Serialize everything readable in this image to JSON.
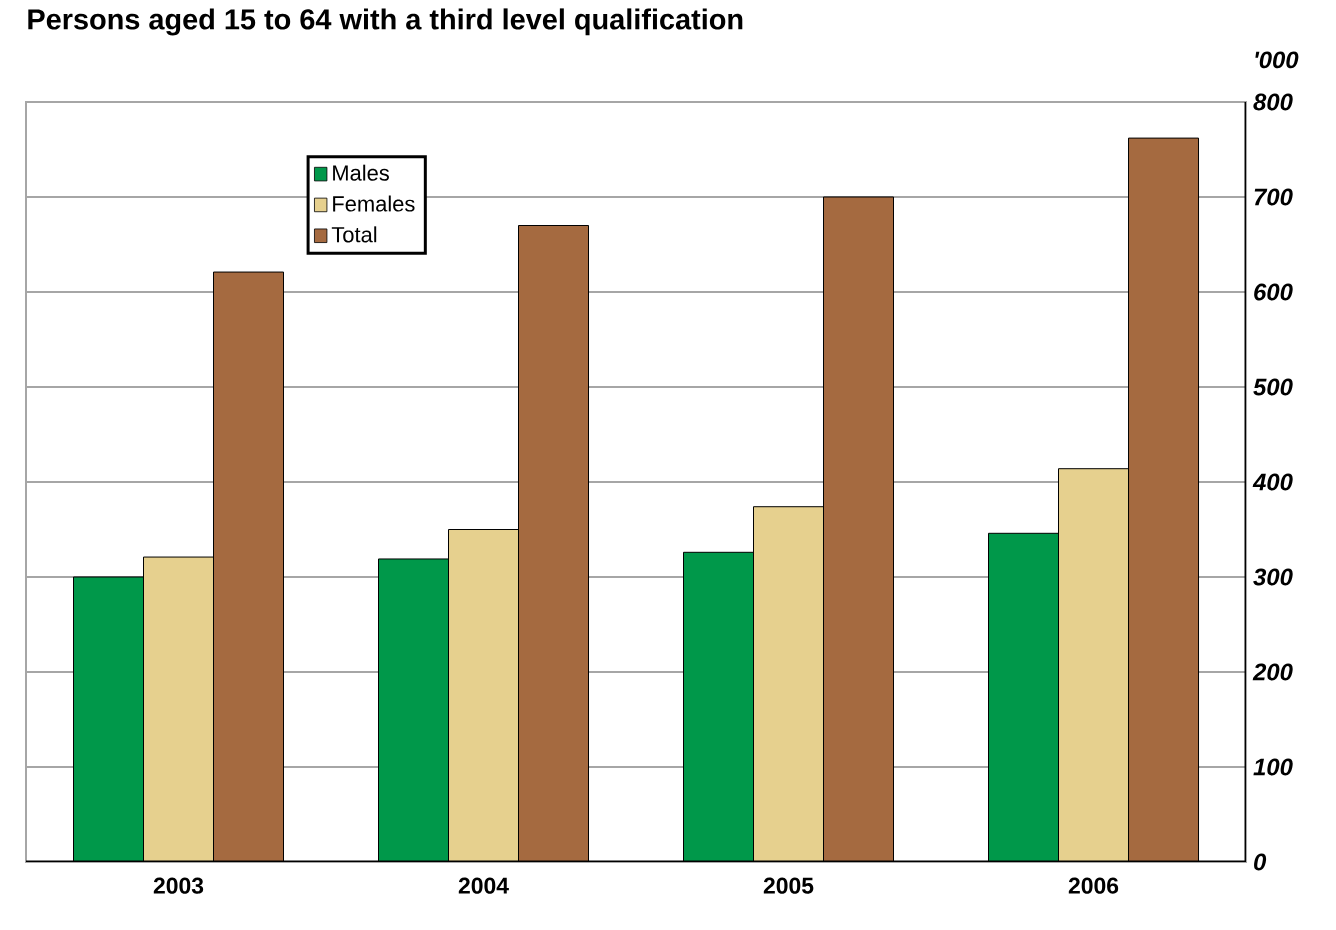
{
  "chart_data": {
    "type": "bar",
    "title": "Persons aged 15 to 64 with a third level qualification",
    "ylabel": "'000",
    "categories": [
      "2003",
      "2004",
      "2005",
      "2006"
    ],
    "series": [
      {
        "name": "Males",
        "color": "#00984a",
        "values": [
          300,
          319,
          326,
          346
        ]
      },
      {
        "name": "Females",
        "color": "#e6d08e",
        "values": [
          321,
          350,
          374,
          414
        ]
      },
      {
        "name": "Total",
        "color": "#a56a40",
        "values": [
          621,
          670,
          700,
          762
        ]
      }
    ],
    "ylim": [
      0,
      800
    ],
    "yticks": [
      0,
      100,
      200,
      300,
      400,
      500,
      600,
      700,
      800
    ],
    "grid": "y",
    "legend": "top left"
  }
}
